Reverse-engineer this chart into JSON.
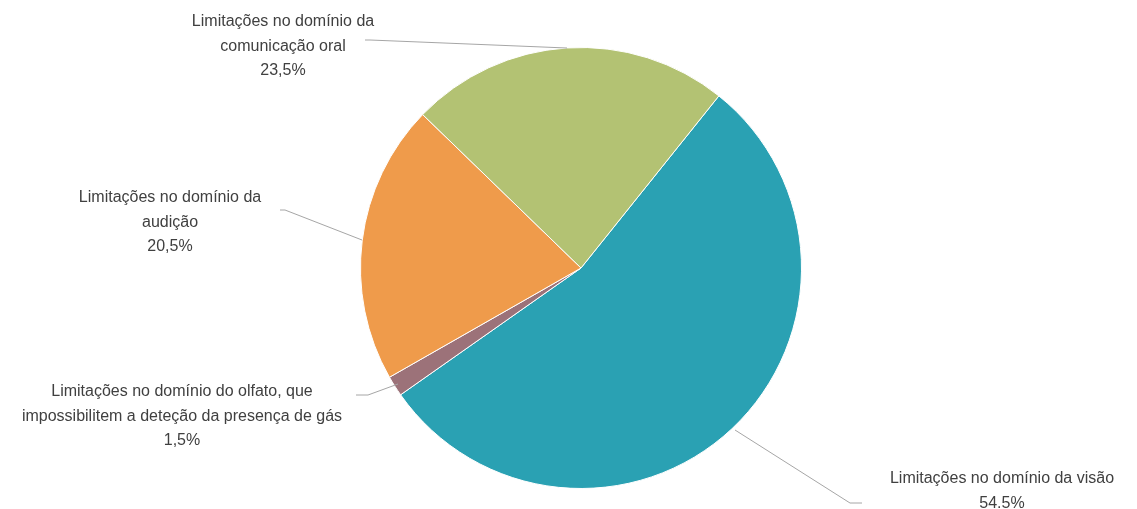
{
  "chart_data": {
    "type": "pie",
    "categories": [
      "Limitações no domínio da visão",
      "Limitações no domínio do olfato, que impossibilitem a deteção da presença de gás",
      "Limitações no domínio da audição",
      "Limitações no domínio da comunicação oral"
    ],
    "values": [
      54.5,
      1.5,
      20.5,
      23.5
    ],
    "colors": [
      "#2aa1b3",
      "#9c7279",
      "#ef9b4b",
      "#b3c273"
    ],
    "value_labels": [
      "54.5%",
      "1,5%",
      "20,5%",
      "23,5%"
    ],
    "legend": false
  }
}
